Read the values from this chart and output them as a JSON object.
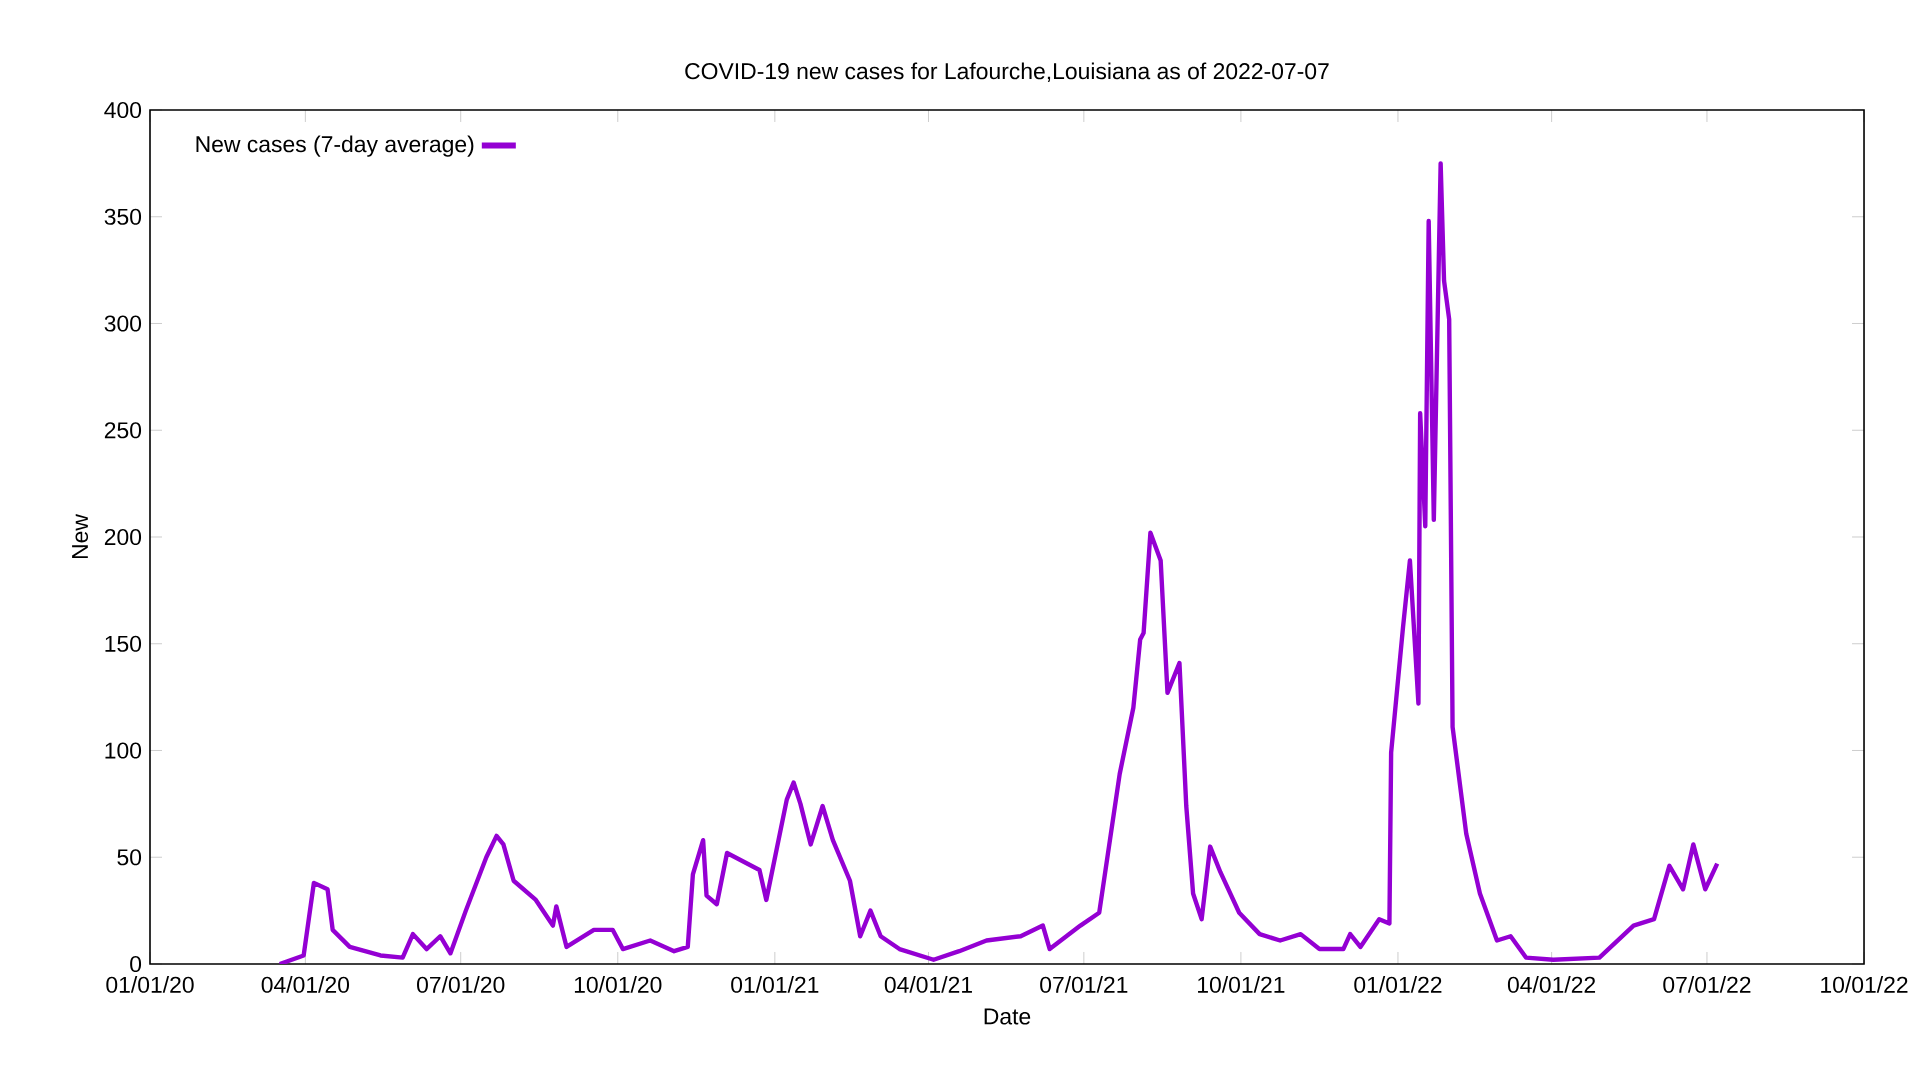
{
  "chart_data": {
    "type": "line",
    "title": "COVID-19 new cases for Lafourche,Louisiana as of 2022-07-07",
    "xlabel": "Date",
    "ylabel": "New",
    "xlim": [
      "2020-01-01",
      "2022-10-01"
    ],
    "ylim": [
      0,
      400
    ],
    "xticks": [
      {
        "value": "2020-01-01",
        "label": "01/01/20"
      },
      {
        "value": "2020-04-01",
        "label": "04/01/20"
      },
      {
        "value": "2020-07-01",
        "label": "07/01/20"
      },
      {
        "value": "2020-10-01",
        "label": "10/01/20"
      },
      {
        "value": "2021-01-01",
        "label": "01/01/21"
      },
      {
        "value": "2021-04-01",
        "label": "04/01/21"
      },
      {
        "value": "2021-07-01",
        "label": "07/01/21"
      },
      {
        "value": "2021-10-01",
        "label": "10/01/21"
      },
      {
        "value": "2022-01-01",
        "label": "01/01/22"
      },
      {
        "value": "2022-04-01",
        "label": "04/01/22"
      },
      {
        "value": "2022-07-01",
        "label": "07/01/22"
      },
      {
        "value": "2022-10-01",
        "label": "10/01/22"
      }
    ],
    "yticks": [
      0,
      50,
      100,
      150,
      200,
      250,
      300,
      350,
      400
    ],
    "legend": "top left",
    "marker": "none",
    "line_style": "solid",
    "series": [
      {
        "name": "New cases (7-day average)",
        "color": "#9400d3",
        "x": [
          "2020-03-17",
          "2020-03-31",
          "2020-04-06",
          "2020-04-14",
          "2020-04-17",
          "2020-04-27",
          "2020-05-15",
          "2020-05-28",
          "2020-06-03",
          "2020-06-11",
          "2020-06-19",
          "2020-06-25",
          "2020-07-04",
          "2020-07-16",
          "2020-07-22",
          "2020-07-26",
          "2020-08-01",
          "2020-08-14",
          "2020-08-24",
          "2020-08-26",
          "2020-09-01",
          "2020-09-17",
          "2020-09-28",
          "2020-10-04",
          "2020-10-20",
          "2020-11-03",
          "2020-11-11",
          "2020-11-14",
          "2020-11-20",
          "2020-11-22",
          "2020-11-28",
          "2020-12-04",
          "2020-12-23",
          "2020-12-27",
          "2021-01-08",
          "2021-01-12",
          "2021-01-16",
          "2021-01-22",
          "2021-01-29",
          "2021-02-04",
          "2021-02-14",
          "2021-02-20",
          "2021-02-26",
          "2021-03-04",
          "2021-03-15",
          "2021-04-04",
          "2021-04-19",
          "2021-05-05",
          "2021-05-25",
          "2021-06-07",
          "2021-06-11",
          "2021-06-29",
          "2021-07-10",
          "2021-07-22",
          "2021-07-30",
          "2021-08-03",
          "2021-08-05",
          "2021-08-09",
          "2021-08-15",
          "2021-08-19",
          "2021-08-26",
          "2021-08-30",
          "2021-09-03",
          "2021-09-08",
          "2021-09-13",
          "2021-09-19",
          "2021-09-30",
          "2021-10-12",
          "2021-10-24",
          "2021-11-05",
          "2021-11-16",
          "2021-11-30",
          "2021-12-04",
          "2021-12-10",
          "2021-12-21",
          "2021-12-27",
          "2021-12-28",
          "2022-01-04",
          "2022-01-08",
          "2022-01-13",
          "2022-01-14",
          "2022-01-17",
          "2022-01-19",
          "2022-01-22",
          "2022-01-26",
          "2022-01-28",
          "2022-01-31",
          "2022-02-02",
          "2022-02-10",
          "2022-02-18",
          "2022-02-28",
          "2022-03-08",
          "2022-03-17",
          "2022-04-02",
          "2022-04-29",
          "2022-05-19",
          "2022-05-31",
          "2022-06-09",
          "2022-06-17",
          "2022-06-23",
          "2022-06-30",
          "2022-07-07"
        ],
        "values": [
          0,
          4,
          38,
          35,
          16,
          8,
          4,
          3,
          14,
          7,
          13,
          5,
          25,
          50,
          60,
          56,
          39,
          30,
          18,
          27,
          8,
          16,
          16,
          7,
          11,
          6,
          8,
          42,
          58,
          32,
          28,
          52,
          44,
          30,
          77,
          85,
          75,
          56,
          74,
          58,
          39,
          13,
          25,
          13,
          7,
          2,
          6,
          11,
          13,
          18,
          7,
          18,
          24,
          89,
          120,
          152,
          155,
          202,
          189,
          127,
          141,
          74,
          33,
          21,
          55,
          43,
          24,
          14,
          11,
          14,
          7,
          7,
          14,
          8,
          21,
          19,
          99,
          158,
          189,
          122,
          258,
          205,
          348,
          208,
          375,
          320,
          302,
          111,
          61,
          33,
          11,
          13,
          3,
          2,
          3,
          18,
          21,
          46,
          35,
          56,
          35,
          47
        ]
      }
    ]
  }
}
